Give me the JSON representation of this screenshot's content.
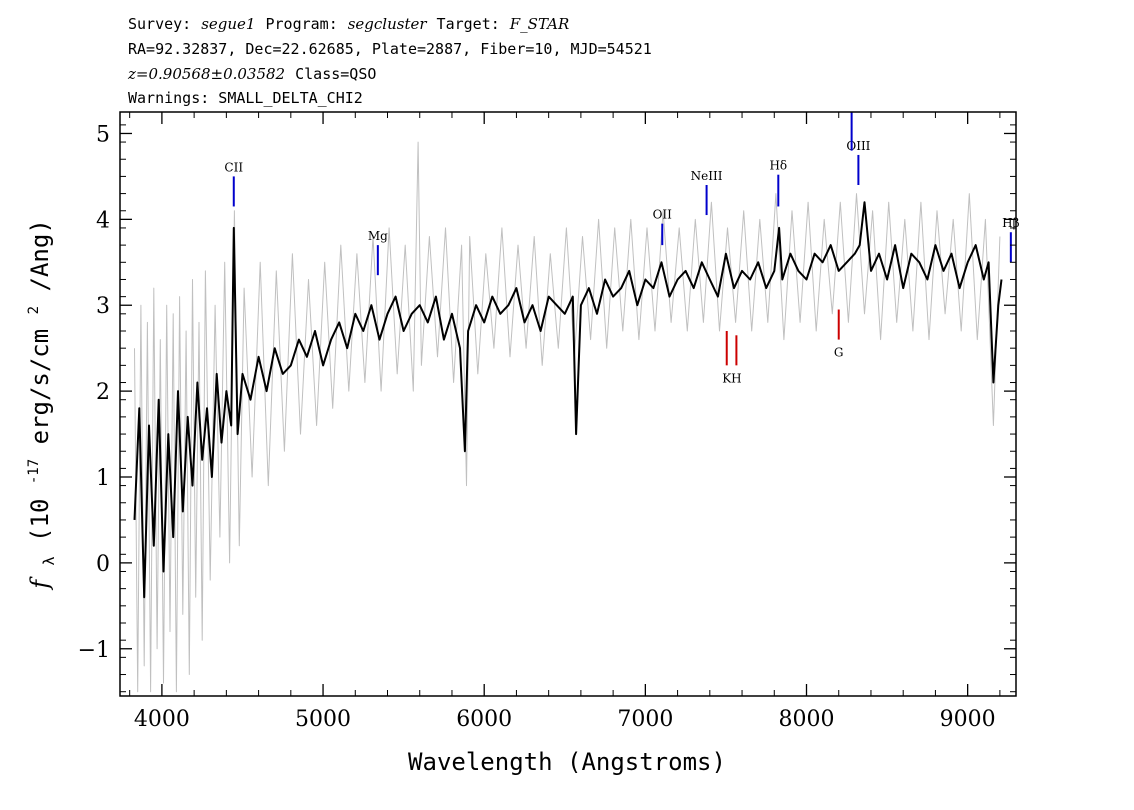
{
  "header": {
    "survey_label": "Survey:",
    "survey_value": "segue1",
    "program_label": "Program:",
    "program_value": "segcluster",
    "target_label": "Target:",
    "target_value": "F_STAR",
    "line2": "RA=92.32837, Dec=22.62685, Plate=2887, Fiber=10, MJD=54521",
    "redshift": "z=0.90568±0.03582",
    "class_text": "Class=QSO",
    "warnings": "Warnings: SMALL_DELTA_CHI2"
  },
  "chart_data": {
    "type": "line",
    "title": "",
    "xlabel": "Wavelength (Angstroms)",
    "ylabel_prefix": "f",
    "ylabel_sub": "λ",
    "ylabel_text": " (10",
    "ylabel_exp": "-17",
    "ylabel_units_a": " erg/s/cm",
    "ylabel_units_exp": "2",
    "ylabel_units_b": "/Ang)",
    "xlim": [
      3740,
      9300
    ],
    "ylim": [
      -1.55,
      5.25
    ],
    "xticks": [
      4000,
      5000,
      6000,
      7000,
      8000,
      9000
    ],
    "xtick_labels": [
      "4000",
      "5000",
      "6000",
      "7000",
      "8000",
      "9000"
    ],
    "yticks": [
      -1,
      0,
      1,
      2,
      3,
      4,
      5
    ],
    "ytick_labels": [
      "−1",
      "0",
      "1",
      "2",
      "3",
      "4",
      "5"
    ],
    "series": [
      {
        "role": "smoothed flux",
        "color": "#000000",
        "x": [
          3830,
          3860,
          3890,
          3920,
          3950,
          3980,
          4010,
          4040,
          4070,
          4100,
          4130,
          4160,
          4190,
          4220,
          4250,
          4280,
          4310,
          4340,
          4370,
          4400,
          4430,
          4446,
          4470,
          4500,
          4550,
          4600,
          4650,
          4700,
          4750,
          4800,
          4850,
          4900,
          4950,
          5000,
          5050,
          5100,
          5150,
          5200,
          5250,
          5300,
          5350,
          5400,
          5450,
          5500,
          5550,
          5600,
          5650,
          5700,
          5750,
          5800,
          5850,
          5880,
          5900,
          5950,
          6000,
          6050,
          6100,
          6150,
          6200,
          6250,
          6300,
          6350,
          6400,
          6450,
          6500,
          6550,
          6570,
          6600,
          6650,
          6700,
          6750,
          6800,
          6850,
          6900,
          6950,
          7000,
          7050,
          7100,
          7150,
          7200,
          7250,
          7300,
          7350,
          7400,
          7450,
          7500,
          7550,
          7600,
          7650,
          7700,
          7750,
          7800,
          7830,
          7850,
          7900,
          7950,
          8000,
          8050,
          8100,
          8150,
          8200,
          8250,
          8300,
          8330,
          8360,
          8400,
          8450,
          8500,
          8550,
          8600,
          8650,
          8700,
          8750,
          8800,
          8850,
          8900,
          8950,
          9000,
          9050,
          9100,
          9130,
          9160,
          9190,
          9210
        ],
        "y": [
          0.5,
          1.8,
          -0.4,
          1.6,
          0.2,
          1.9,
          -0.1,
          1.5,
          0.3,
          2.0,
          0.6,
          1.7,
          0.9,
          2.1,
          1.2,
          1.8,
          1.0,
          2.2,
          1.4,
          2.0,
          1.6,
          3.9,
          1.5,
          2.2,
          1.9,
          2.4,
          2.0,
          2.5,
          2.2,
          2.3,
          2.6,
          2.4,
          2.7,
          2.3,
          2.6,
          2.8,
          2.5,
          2.9,
          2.7,
          3.0,
          2.6,
          2.9,
          3.1,
          2.7,
          2.9,
          3.0,
          2.8,
          3.1,
          2.6,
          2.9,
          2.5,
          1.3,
          2.7,
          3.0,
          2.8,
          3.1,
          2.9,
          3.0,
          3.2,
          2.8,
          3.0,
          2.7,
          3.1,
          3.0,
          2.9,
          3.1,
          1.5,
          3.0,
          3.2,
          2.9,
          3.3,
          3.1,
          3.2,
          3.4,
          3.0,
          3.3,
          3.2,
          3.5,
          3.1,
          3.3,
          3.4,
          3.2,
          3.5,
          3.3,
          3.1,
          3.6,
          3.2,
          3.4,
          3.3,
          3.5,
          3.2,
          3.4,
          3.9,
          3.3,
          3.6,
          3.4,
          3.3,
          3.6,
          3.5,
          3.7,
          3.4,
          3.5,
          3.6,
          3.7,
          4.2,
          3.4,
          3.6,
          3.3,
          3.7,
          3.2,
          3.6,
          3.5,
          3.3,
          3.7,
          3.4,
          3.6,
          3.2,
          3.5,
          3.7,
          3.3,
          3.5,
          2.1,
          3.0,
          3.3
        ]
      },
      {
        "role": "raw flux",
        "color": "#c0c0c0",
        "x": [
          3830,
          3850,
          3870,
          3890,
          3910,
          3930,
          3950,
          3970,
          3990,
          4010,
          4030,
          4050,
          4070,
          4090,
          4110,
          4130,
          4150,
          4170,
          4190,
          4210,
          4230,
          4250,
          4270,
          4300,
          4330,
          4360,
          4390,
          4420,
          4450,
          4480,
          4510,
          4560,
          4610,
          4660,
          4710,
          4760,
          4810,
          4860,
          4910,
          4960,
          5010,
          5060,
          5110,
          5160,
          5210,
          5260,
          5310,
          5360,
          5410,
          5460,
          5510,
          5560,
          5590,
          5610,
          5660,
          5710,
          5760,
          5810,
          5860,
          5890,
          5910,
          5960,
          6010,
          6060,
          6110,
          6160,
          6210,
          6260,
          6310,
          6360,
          6410,
          6460,
          6510,
          6560,
          6610,
          6660,
          6710,
          6760,
          6810,
          6860,
          6910,
          6960,
          7010,
          7060,
          7110,
          7160,
          7210,
          7260,
          7310,
          7360,
          7410,
          7460,
          7510,
          7560,
          7610,
          7660,
          7710,
          7760,
          7810,
          7860,
          7910,
          7960,
          8010,
          8060,
          8110,
          8160,
          8210,
          8260,
          8310,
          8360,
          8410,
          8460,
          8510,
          8560,
          8610,
          8660,
          8710,
          8760,
          8810,
          8860,
          8910,
          8960,
          9010,
          9060,
          9110,
          9160,
          9200
        ],
        "y": [
          2.5,
          -1.5,
          3.0,
          -1.2,
          2.8,
          -1.5,
          3.2,
          -1.0,
          2.6,
          -1.4,
          3.0,
          -0.8,
          2.9,
          -1.5,
          3.1,
          -0.6,
          2.7,
          -1.3,
          3.3,
          -0.4,
          2.8,
          -0.9,
          3.4,
          -0.2,
          3.0,
          0.3,
          3.5,
          0.0,
          4.1,
          0.2,
          3.2,
          1.0,
          3.5,
          0.9,
          3.4,
          1.3,
          3.6,
          1.5,
          3.3,
          1.6,
          3.5,
          1.8,
          3.7,
          2.0,
          3.6,
          2.1,
          3.8,
          2.0,
          3.9,
          2.2,
          3.7,
          2.0,
          4.9,
          2.3,
          3.8,
          2.4,
          3.9,
          2.1,
          3.7,
          0.9,
          3.8,
          2.2,
          3.6,
          2.5,
          3.9,
          2.4,
          3.7,
          2.5,
          3.8,
          2.3,
          3.6,
          2.5,
          3.9,
          2.4,
          3.8,
          2.6,
          4.0,
          2.5,
          3.9,
          2.7,
          4.0,
          2.6,
          3.9,
          2.7,
          4.1,
          2.8,
          3.9,
          2.7,
          4.0,
          2.8,
          4.2,
          2.7,
          3.9,
          2.8,
          4.1,
          2.7,
          4.0,
          2.8,
          4.3,
          2.6,
          4.1,
          2.8,
          4.2,
          2.7,
          4.0,
          2.9,
          4.2,
          2.8,
          4.3,
          2.9,
          4.1,
          2.6,
          4.2,
          2.8,
          4.0,
          2.7,
          4.2,
          2.6,
          4.1,
          2.9,
          4.0,
          2.7,
          4.3,
          2.6,
          4.0,
          1.6,
          3.8
        ]
      }
    ],
    "emission_lines": [
      {
        "label": "CII",
        "x": 4446,
        "y_low": 4.15,
        "y_high": 4.5
      },
      {
        "label": "Mg",
        "x": 5340,
        "y_low": 3.35,
        "y_high": 3.7
      },
      {
        "label": "OII",
        "x": 7105,
        "y_low": 3.7,
        "y_high": 3.95
      },
      {
        "label": "NeIII",
        "x": 7380,
        "y_low": 4.05,
        "y_high": 4.4
      },
      {
        "label": "Hδ",
        "x": 7825,
        "y_low": 4.15,
        "y_high": 4.52
      },
      {
        "label": "OIII",
        "x": 8322,
        "y_low": 4.4,
        "y_high": 4.75
      },
      {
        "label": "Hβ",
        "x": 9268,
        "y_low": 3.5,
        "y_high": 3.85
      }
    ],
    "absorption_lines": [
      {
        "label": "K",
        "x": 7505,
        "y_low": 2.3,
        "y_high": 2.7
      },
      {
        "label": "H",
        "x": 7565,
        "y_low": 2.3,
        "y_high": 2.65
      },
      {
        "label": "G",
        "x": 8200,
        "y_low": 2.6,
        "y_high": 2.95
      }
    ],
    "emission_color": "#0000cc",
    "absorption_color": "#cc0000",
    "clipped_line": {
      "x": 8280,
      "y_low": 4.8,
      "y_high": 5.25
    }
  }
}
